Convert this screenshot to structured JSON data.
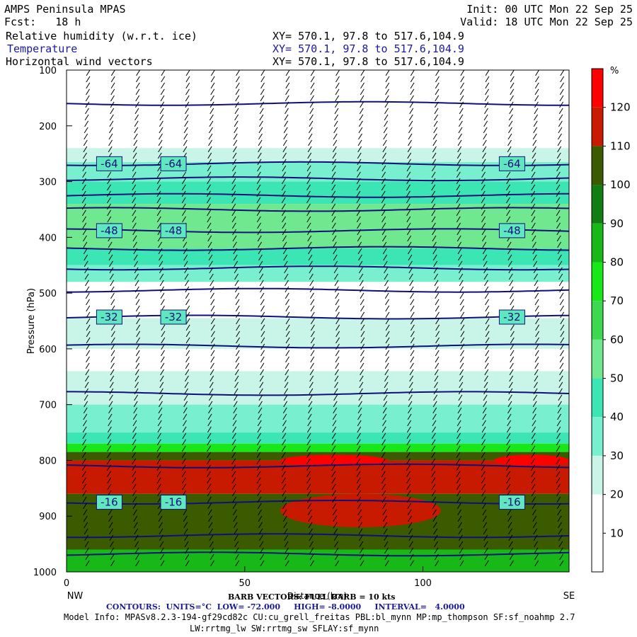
{
  "header": {
    "model": "AMPS Peninsula MPAS",
    "init": "Init: 00 UTC Mon 22 Sep 25",
    "fcst": "Fcst:   18 h",
    "valid": "Valid: 18 UTC Mon 22 Sep 25",
    "fields": [
      {
        "name": "Relative humidity (w.r.t. ice)",
        "xy": "XY= 570.1, 97.8 to 517.6,104.9",
        "color": "#000000"
      },
      {
        "name": "Temperature",
        "xy": "XY= 570.1, 97.8 to 517.6,104.9",
        "color": "#1a1a9c"
      },
      {
        "name": "Horizontal wind vectors",
        "xy": "XY= 570.1, 97.8 to 517.6,104.9",
        "color": "#000000"
      }
    ]
  },
  "chart_data": {
    "type": "heatmap",
    "description_type": "cross-section: RH shading, temperature contours, wind barbs",
    "ylabel": "Pressure (hPa)",
    "xlabel": "Distance (km)",
    "x_range": [
      0,
      141
    ],
    "x_ticks": [
      0,
      50,
      100
    ],
    "x_end_labels": {
      "left": "NW",
      "right": "SE"
    },
    "y_range_hPa": [
      100,
      1000
    ],
    "y_ticks": [
      100,
      200,
      300,
      400,
      500,
      600,
      700,
      800,
      900,
      1000
    ],
    "colorbar": {
      "unit": "%",
      "tick_labels": [
        10,
        20,
        30,
        40,
        50,
        60,
        70,
        80,
        90,
        100,
        110,
        120
      ],
      "colors": [
        "#ffffff",
        "#ffffff",
        "#c8f5e8",
        "#78f0d0",
        "#3ce6b4",
        "#70e890",
        "#3cd850",
        "#18e818",
        "#18b818",
        "#127d12",
        "#3c5a00",
        "#c81a00",
        "#ff0000"
      ]
    },
    "rh_layers": [
      {
        "from": 100,
        "to": 240,
        "color": "#ffffff"
      },
      {
        "from": 240,
        "to": 265,
        "color": "#c8f5e8"
      },
      {
        "from": 265,
        "to": 300,
        "color": "#78f0d0"
      },
      {
        "from": 300,
        "to": 340,
        "color": "#3ce6b4"
      },
      {
        "from": 340,
        "to": 420,
        "color": "#70e890"
      },
      {
        "from": 420,
        "to": 450,
        "color": "#3ce6b4"
      },
      {
        "from": 450,
        "to": 480,
        "color": "#78f0d0"
      },
      {
        "from": 480,
        "to": 545,
        "color": "#ffffff"
      },
      {
        "from": 545,
        "to": 600,
        "color": "#c8f5e8"
      },
      {
        "from": 600,
        "to": 640,
        "color": "#ffffff"
      },
      {
        "from": 640,
        "to": 700,
        "color": "#c8f5e8"
      },
      {
        "from": 700,
        "to": 750,
        "color": "#78f0d0"
      },
      {
        "from": 750,
        "to": 770,
        "color": "#3ce6b4"
      },
      {
        "from": 770,
        "to": 785,
        "color": "#18e818"
      },
      {
        "from": 785,
        "to": 800,
        "color": "#3c5a00"
      },
      {
        "from": 800,
        "to": 860,
        "color": "#c81a00"
      },
      {
        "from": 860,
        "to": 960,
        "color": "#3c5a00"
      },
      {
        "from": 960,
        "to": 1000,
        "color": "#18b818"
      }
    ],
    "rh_red_blobs": [
      {
        "x0": 60,
        "x1": 90,
        "p0": 790,
        "p1": 810,
        "color": "#ff0000"
      },
      {
        "x0": 120,
        "x1": 141,
        "p0": 790,
        "p1": 810,
        "color": "#ff0000"
      },
      {
        "x0": 60,
        "x1": 105,
        "p0": 860,
        "p1": 920,
        "color": "#c81a00"
      }
    ],
    "temperature_contours_C": [
      {
        "p": 160,
        "label": null
      },
      {
        "p": 268,
        "label": "-64"
      },
      {
        "p": 295,
        "label": null
      },
      {
        "p": 325,
        "label": null
      },
      {
        "p": 350,
        "label": null
      },
      {
        "p": 388,
        "label": "-48"
      },
      {
        "p": 420,
        "label": null
      },
      {
        "p": 455,
        "label": null
      },
      {
        "p": 495,
        "label": null
      },
      {
        "p": 543,
        "label": "-32"
      },
      {
        "p": 595,
        "label": null
      },
      {
        "p": 680,
        "label": null
      },
      {
        "p": 810,
        "label": null
      },
      {
        "p": 875,
        "label": "-16"
      },
      {
        "p": 935,
        "label": null
      },
      {
        "p": 968,
        "label": null
      }
    ],
    "contour_label_positions_km": [
      12,
      30,
      125
    ],
    "barb_columns_km": [
      5,
      12,
      19,
      26,
      33,
      40,
      47,
      54,
      61,
      68,
      75,
      82,
      89,
      96,
      103,
      110,
      117,
      124,
      131,
      138
    ]
  },
  "footer": {
    "barb_note": "BARB VECTORS: FULL BARB = 10 kts",
    "contours": "CONTOURS:  UNITS=°C  LOW= -72.000     HIGH= -8.0000     INTERVAL=   4.0000",
    "model_info": "Model Info: MPASv8.2.3-194-gf29cd82c CU:cu_grell_freitas PBL:bl_mynn MP:mp_thompson SF:sf_noahmp 2.7",
    "model_info2": "LW:rrtmg_lw SW:rrtmg_sw SFLAY:sf_mynn"
  }
}
